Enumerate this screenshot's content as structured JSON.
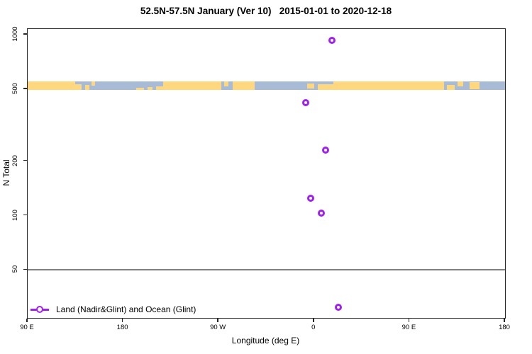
{
  "title": "52.5N-57.5N January (Ver 10)   2015-01-01 to 2020-12-18",
  "colors": {
    "marker": "#A020F0",
    "land": "#FFD77E",
    "ocean": "#A8BBD6",
    "reference_line": "#808080",
    "frame": "#262626"
  },
  "legend": {
    "label": "Land (Nadir&Glint) and Ocean (Glint)"
  },
  "chart_data": {
    "type": "scatter",
    "title": "52.5N-57.5N January (Ver 10)   2015-01-01 to 2020-12-18",
    "xlabel": "Longitude (deg E)",
    "ylabel": "N Total",
    "x_axis": {
      "range_deg_e": [
        90,
        540
      ],
      "tick_values": [
        90,
        180,
        270,
        360,
        450,
        540
      ],
      "tick_labels": [
        "90 E",
        "180",
        "90 W",
        "0",
        "90 E",
        "180"
      ]
    },
    "y_axis": {
      "scale": "log",
      "range": [
        27.2,
        1075
      ],
      "tick_values": [
        1000,
        500,
        200,
        100,
        50
      ],
      "tick_labels": [
        "1000",
        "500",
        "200",
        "100",
        "50"
      ]
    },
    "reference_line": {
      "value": 50
    },
    "series": [
      {
        "name": "Land (Nadir&Glint) and Ocean (Glint)",
        "marker": "open-circle",
        "color": "#A020F0",
        "points": [
          {
            "lon": 17,
            "n": 930
          },
          {
            "lon": -8,
            "n": 420
          },
          {
            "lon": 11,
            "n": 230
          },
          {
            "lon": -3,
            "n": 125
          },
          {
            "lon": 7,
            "n": 103
          },
          {
            "lon": 23,
            "n": 31
          }
        ]
      }
    ],
    "map_band": {
      "description": "land/ocean strip of latitude band 52.5N-57.5N across the longitude axis",
      "n_range": [
        493,
        553
      ],
      "land_color": "#FFD77E",
      "ocean_color": "#A8BBD6",
      "land_segments": [
        [
          0.0,
          0.1,
          0.0,
          1.0
        ],
        [
          0.1,
          0.113,
          0.35,
          1.0
        ],
        [
          0.12,
          0.129,
          0.45,
          1.0
        ],
        [
          0.134,
          0.141,
          0.0,
          0.5
        ],
        [
          0.228,
          0.243,
          0.7,
          1.0
        ],
        [
          0.251,
          0.262,
          0.65,
          1.0
        ],
        [
          0.269,
          0.284,
          0.55,
          1.0
        ],
        [
          0.284,
          0.405,
          0.0,
          1.0
        ],
        [
          0.411,
          0.421,
          0.0,
          0.55
        ],
        [
          0.43,
          0.476,
          0.0,
          1.0
        ],
        [
          0.585,
          0.601,
          0.25,
          0.8
        ],
        [
          0.608,
          0.641,
          0.3,
          1.0
        ],
        [
          0.641,
          0.872,
          0.0,
          1.0
        ],
        [
          0.878,
          0.894,
          0.4,
          1.0
        ],
        [
          0.901,
          0.912,
          0.0,
          0.55
        ],
        [
          0.926,
          0.947,
          0.1,
          0.9
        ]
      ]
    }
  }
}
